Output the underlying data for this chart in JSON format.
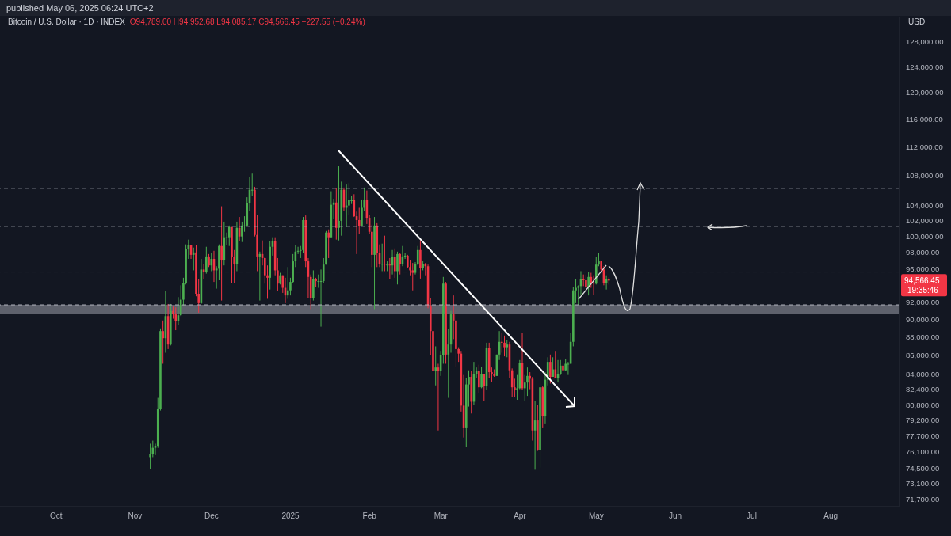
{
  "chart_data": {
    "type": "candlestick",
    "title": "Bitcoin / U.S. Dollar · 1D · INDEX",
    "subtitle": "O94,789.00 H94,952.68 L94,085.17 C94,566.45 −227.55 (−0.24%)",
    "ylabel": "USD",
    "annotations": [
      "published May 06, 2025 06:24 UTC+2",
      "94,566.45",
      "19:35:46"
    ],
    "log": "y",
    "xlim": [
      "2024-09-09",
      "2025-08-28"
    ],
    "xticks": [
      {
        "value": "2024-10-01",
        "label": "Oct"
      },
      {
        "value": "2024-11-01",
        "label": "Nov"
      },
      {
        "value": "2024-12-01",
        "label": "Dec"
      },
      {
        "value": "2025-01-01",
        "label": "2025"
      },
      {
        "value": "2025-02-01",
        "label": "Feb"
      },
      {
        "value": "2025-03-01",
        "label": "Mar"
      },
      {
        "value": "2025-04-01",
        "label": "Apr"
      },
      {
        "value": "2025-05-01",
        "label": "May"
      },
      {
        "value": "2025-06-01",
        "label": "Jun"
      },
      {
        "value": "2025-07-01",
        "label": "Jul"
      },
      {
        "value": "2025-08-01",
        "label": "Aug"
      }
    ],
    "ylim": [
      71000,
      132000
    ],
    "yticks": [
      {
        "value": 71700,
        "label": "71,700.00"
      },
      {
        "value": 73100,
        "label": "73,100.00"
      },
      {
        "value": 74500,
        "label": "74,500.00"
      },
      {
        "value": 76100,
        "label": "76,100.00"
      },
      {
        "value": 77700,
        "label": "77,700.00"
      },
      {
        "value": 79200,
        "label": "79,200.00"
      },
      {
        "value": 80800,
        "label": "80,800.00"
      },
      {
        "value": 82400,
        "label": "82,400.00"
      },
      {
        "value": 84000,
        "label": "84,000.00"
      },
      {
        "value": 86000,
        "label": "86,000.00"
      },
      {
        "value": 88000,
        "label": "88,000.00"
      },
      {
        "value": 90000,
        "label": "90,000.00"
      },
      {
        "value": 92000,
        "label": "92,000.00"
      },
      {
        "value": 96000,
        "label": "96,000.00"
      },
      {
        "value": 98000,
        "label": "98,000.00"
      },
      {
        "value": 100000,
        "label": "100,000.00"
      },
      {
        "value": 102000,
        "label": "102,000.00"
      },
      {
        "value": 104000,
        "label": "104,000.00"
      },
      {
        "value": 108000,
        "label": "108,000.00"
      },
      {
        "value": 112000,
        "label": "112,000.00"
      },
      {
        "value": 116000,
        "label": "116,000.00"
      },
      {
        "value": 120000,
        "label": "120,000.00"
      },
      {
        "value": 124000,
        "label": "124,000.00"
      },
      {
        "value": 128000,
        "label": "128,000.00"
      }
    ],
    "ref_lines": [
      {
        "axis": "y",
        "value": 106300,
        "color": "#b2b5be",
        "line_style": "dashed"
      },
      {
        "axis": "y",
        "value": 101300,
        "color": "#b2b5be",
        "line_style": "dashed"
      },
      {
        "axis": "y",
        "value": 95600,
        "color": "#b2b5be",
        "line_style": "dashed"
      },
      {
        "axis": "y",
        "value": 91700,
        "color": "#b2b5be",
        "line_style": "dashed"
      }
    ],
    "bands": [
      {
        "axis": "y",
        "from": 90600,
        "to": 91700,
        "color": "#787b86"
      }
    ],
    "x": [
      "2024-11-07",
      "2024-11-08",
      "2024-11-09",
      "2024-11-10",
      "2024-11-11",
      "2024-11-12",
      "2024-11-13",
      "2024-11-14",
      "2024-11-15",
      "2024-11-16",
      "2024-11-17",
      "2024-11-18",
      "2024-11-19",
      "2024-11-20",
      "2024-11-21",
      "2024-11-22",
      "2024-11-23",
      "2024-11-24",
      "2024-11-25",
      "2024-11-26",
      "2024-11-27",
      "2024-11-28",
      "2024-11-29",
      "2024-11-30",
      "2024-12-01",
      "2024-12-02",
      "2024-12-03",
      "2024-12-04",
      "2024-12-05",
      "2024-12-06",
      "2024-12-07",
      "2024-12-08",
      "2024-12-09",
      "2024-12-10",
      "2024-12-11",
      "2024-12-12",
      "2024-12-13",
      "2024-12-14",
      "2024-12-15",
      "2024-12-16",
      "2024-12-17",
      "2024-12-18",
      "2024-12-19",
      "2024-12-20",
      "2024-12-21",
      "2024-12-22",
      "2024-12-23",
      "2024-12-24",
      "2024-12-25",
      "2024-12-26",
      "2024-12-27",
      "2024-12-28",
      "2024-12-29",
      "2024-12-30",
      "2024-12-31",
      "2025-01-01",
      "2025-01-02",
      "2025-01-03",
      "2025-01-04",
      "2025-01-05",
      "2025-01-06",
      "2025-01-07",
      "2025-01-08",
      "2025-01-09",
      "2025-01-10",
      "2025-01-11",
      "2025-01-12",
      "2025-01-13",
      "2025-01-14",
      "2025-01-15",
      "2025-01-16",
      "2025-01-17",
      "2025-01-18",
      "2025-01-19",
      "2025-01-20",
      "2025-01-21",
      "2025-01-22",
      "2025-01-23",
      "2025-01-24",
      "2025-01-25",
      "2025-01-26",
      "2025-01-27",
      "2025-01-28",
      "2025-01-29",
      "2025-01-30",
      "2025-01-31",
      "2025-02-01",
      "2025-02-02",
      "2025-02-03",
      "2025-02-04",
      "2025-02-05",
      "2025-02-06",
      "2025-02-07",
      "2025-02-08",
      "2025-02-09",
      "2025-02-10",
      "2025-02-11",
      "2025-02-12",
      "2025-02-13",
      "2025-02-14",
      "2025-02-15",
      "2025-02-16",
      "2025-02-17",
      "2025-02-18",
      "2025-02-19",
      "2025-02-20",
      "2025-02-21",
      "2025-02-22",
      "2025-02-23",
      "2025-02-24",
      "2025-02-25",
      "2025-02-26",
      "2025-02-27",
      "2025-02-28",
      "2025-03-01",
      "2025-03-02",
      "2025-03-03",
      "2025-03-04",
      "2025-03-05",
      "2025-03-06",
      "2025-03-07",
      "2025-03-08",
      "2025-03-09",
      "2025-03-10",
      "2025-03-11",
      "2025-03-12",
      "2025-03-13",
      "2025-03-14",
      "2025-03-15",
      "2025-03-16",
      "2025-03-17",
      "2025-03-18",
      "2025-03-19",
      "2025-03-20",
      "2025-03-21",
      "2025-03-22",
      "2025-03-23",
      "2025-03-24",
      "2025-03-25",
      "2025-03-26",
      "2025-03-27",
      "2025-03-28",
      "2025-03-29",
      "2025-03-30",
      "2025-03-31",
      "2025-04-01",
      "2025-04-02",
      "2025-04-03",
      "2025-04-04",
      "2025-04-05",
      "2025-04-06",
      "2025-04-07",
      "2025-04-08",
      "2025-04-09",
      "2025-04-10",
      "2025-04-11",
      "2025-04-12",
      "2025-04-13",
      "2025-04-14",
      "2025-04-15",
      "2025-04-16",
      "2025-04-17",
      "2025-04-18",
      "2025-04-19",
      "2025-04-20",
      "2025-04-21",
      "2025-04-22",
      "2025-04-23",
      "2025-04-24",
      "2025-04-25",
      "2025-04-26",
      "2025-04-27",
      "2025-04-28",
      "2025-04-29",
      "2025-04-30",
      "2025-05-01",
      "2025-05-02",
      "2025-05-03",
      "2025-05-04",
      "2025-05-05",
      "2025-05-06"
    ],
    "ohlc": [
      [
        75600,
        76900,
        74500,
        75900
      ],
      [
        75900,
        77200,
        75600,
        76500
      ],
      [
        76500,
        76900,
        75800,
        76700
      ],
      [
        76700,
        81500,
        76500,
        80400
      ],
      [
        80400,
        89000,
        80200,
        88700
      ],
      [
        88700,
        89900,
        85100,
        87900
      ],
      [
        87900,
        93300,
        86300,
        90400
      ],
      [
        90400,
        91800,
        86700,
        87200
      ],
      [
        87200,
        91800,
        87100,
        91000
      ],
      [
        91000,
        91500,
        90100,
        90600
      ],
      [
        90600,
        91400,
        88800,
        89800
      ],
      [
        89800,
        92600,
        89400,
        90500
      ],
      [
        90500,
        94000,
        90400,
        92300
      ],
      [
        92300,
        94900,
        91600,
        94300
      ],
      [
        94300,
        99000,
        94100,
        98400
      ],
      [
        98400,
        99600,
        97200,
        98900
      ],
      [
        98900,
        98900,
        97200,
        97700
      ],
      [
        97700,
        98600,
        95800,
        98000
      ],
      [
        98000,
        98900,
        92700,
        93000
      ],
      [
        93000,
        94700,
        90800,
        91900
      ],
      [
        91900,
        97200,
        91800,
        95900
      ],
      [
        95900,
        96600,
        94700,
        95600
      ],
      [
        95600,
        98700,
        95400,
        97500
      ],
      [
        97500,
        97800,
        96200,
        96400
      ],
      [
        96400,
        97900,
        95700,
        97200
      ],
      [
        97200,
        98200,
        94400,
        95800
      ],
      [
        95800,
        96300,
        93600,
        96000
      ],
      [
        96000,
        99000,
        94600,
        98800
      ],
      [
        98800,
        103900,
        92200,
        97000
      ],
      [
        97000,
        101900,
        96400,
        99900
      ],
      [
        99900,
        100500,
        98900,
        99900
      ],
      [
        99900,
        101400,
        98800,
        101200
      ],
      [
        101200,
        101200,
        94300,
        97400
      ],
      [
        97400,
        98300,
        94300,
        96600
      ],
      [
        96600,
        101900,
        95700,
        101100
      ],
      [
        101100,
        102500,
        99400,
        100000
      ],
      [
        100000,
        101900,
        99300,
        101400
      ],
      [
        101400,
        102600,
        100600,
        101400
      ],
      [
        101400,
        105100,
        101300,
        104300
      ],
      [
        104300,
        107800,
        103300,
        106100
      ],
      [
        106100,
        108300,
        105300,
        106100
      ],
      [
        106100,
        106500,
        100000,
        100200
      ],
      [
        100200,
        102800,
        95700,
        97500
      ],
      [
        97500,
        98100,
        92200,
        97800
      ],
      [
        97800,
        99500,
        96400,
        97300
      ],
      [
        97300,
        97400,
        94200,
        95200
      ],
      [
        95200,
        96400,
        92400,
        94900
      ],
      [
        94900,
        99400,
        93500,
        98700
      ],
      [
        98700,
        99900,
        97600,
        99400
      ],
      [
        99400,
        99900,
        95200,
        95800
      ],
      [
        95800,
        97300,
        93300,
        94200
      ],
      [
        94200,
        95500,
        94100,
        95200
      ],
      [
        95200,
        95200,
        93100,
        93700
      ],
      [
        93700,
        94900,
        91900,
        92800
      ],
      [
        92800,
        96200,
        92400,
        93400
      ],
      [
        93400,
        94900,
        92800,
        94400
      ],
      [
        94400,
        97800,
        94300,
        96900
      ],
      [
        96900,
        98900,
        96200,
        98100
      ],
      [
        98100,
        98700,
        97800,
        98200
      ],
      [
        98200,
        98800,
        97300,
        98300
      ],
      [
        98300,
        102500,
        97900,
        102100
      ],
      [
        102100,
        102700,
        96200,
        96900
      ],
      [
        96900,
        97300,
        92500,
        95000
      ],
      [
        95000,
        95300,
        91200,
        92500
      ],
      [
        92500,
        95800,
        92200,
        94700
      ],
      [
        94700,
        94900,
        93800,
        94500
      ],
      [
        94500,
        95300,
        93700,
        94500
      ],
      [
        94500,
        95900,
        89200,
        94500
      ],
      [
        94500,
        97300,
        94300,
        96500
      ],
      [
        96500,
        100700,
        96500,
        100500
      ],
      [
        100500,
        100900,
        97300,
        99900
      ],
      [
        99900,
        105900,
        99900,
        104100
      ],
      [
        104100,
        104900,
        102300,
        104400
      ],
      [
        104400,
        106300,
        99600,
        101100
      ],
      [
        101100,
        109300,
        99500,
        102000
      ],
      [
        102000,
        107200,
        100100,
        106100
      ],
      [
        106100,
        106400,
        103300,
        103700
      ],
      [
        103700,
        106800,
        101200,
        104000
      ],
      [
        104000,
        107000,
        102800,
        104700
      ],
      [
        104700,
        105300,
        104200,
        104700
      ],
      [
        104700,
        105500,
        102500,
        102600
      ],
      [
        102600,
        103200,
        97800,
        102100
      ],
      [
        102100,
        103700,
        100300,
        101300
      ],
      [
        101300,
        104800,
        101300,
        103700
      ],
      [
        103700,
        106400,
        103300,
        104700
      ],
      [
        104700,
        106000,
        101600,
        102400
      ],
      [
        102400,
        102800,
        100300,
        100600
      ],
      [
        100600,
        101500,
        96200,
        97700
      ],
      [
        97700,
        102500,
        91200,
        101400
      ],
      [
        101400,
        101700,
        96200,
        97900
      ],
      [
        97900,
        99000,
        96200,
        96600
      ],
      [
        96600,
        99100,
        95700,
        96600
      ],
      [
        96600,
        100100,
        95700,
        96500
      ],
      [
        96500,
        96900,
        95700,
        96500
      ],
      [
        96500,
        97300,
        94700,
        96400
      ],
      [
        96400,
        98300,
        95300,
        97400
      ],
      [
        97400,
        98500,
        94900,
        95700
      ],
      [
        95700,
        98100,
        94100,
        97800
      ],
      [
        97800,
        97900,
        95300,
        96600
      ],
      [
        96600,
        98800,
        96300,
        97500
      ],
      [
        97500,
        97900,
        97200,
        97600
      ],
      [
        97600,
        97700,
        96100,
        96200
      ],
      [
        96200,
        97000,
        95200,
        95800
      ],
      [
        95800,
        96700,
        93400,
        95500
      ],
      [
        95500,
        96800,
        95300,
        96600
      ],
      [
        96600,
        98800,
        96400,
        98300
      ],
      [
        98300,
        99500,
        94800,
        96100
      ],
      [
        96100,
        96900,
        95800,
        96600
      ],
      [
        96600,
        96700,
        95200,
        96300
      ],
      [
        96300,
        96500,
        91300,
        91500
      ],
      [
        91500,
        92500,
        86000,
        88700
      ],
      [
        88700,
        89300,
        82300,
        84300
      ],
      [
        84300,
        87000,
        82800,
        84700
      ],
      [
        84700,
        85100,
        78200,
        84300
      ],
      [
        84300,
        86500,
        83800,
        86000
      ],
      [
        86000,
        95000,
        85100,
        94200
      ],
      [
        94200,
        94400,
        85100,
        86100
      ],
      [
        86100,
        88900,
        81500,
        87200
      ],
      [
        87200,
        91000,
        86300,
        90600
      ],
      [
        90600,
        92800,
        87800,
        89900
      ],
      [
        89900,
        91200,
        84700,
        86700
      ],
      [
        86700,
        86900,
        85300,
        86200
      ],
      [
        86200,
        86500,
        80100,
        80700
      ],
      [
        80700,
        83900,
        77500,
        78500
      ],
      [
        78500,
        83600,
        76600,
        82900
      ],
      [
        82900,
        84400,
        80600,
        83700
      ],
      [
        83700,
        84300,
        79900,
        81100
      ],
      [
        81100,
        85300,
        80800,
        84000
      ],
      [
        84000,
        84700,
        83600,
        84300
      ],
      [
        84300,
        85000,
        82000,
        82600
      ],
      [
        82600,
        84800,
        82500,
        84000
      ],
      [
        84000,
        84000,
        81200,
        82700
      ],
      [
        82700,
        87400,
        82300,
        86800
      ],
      [
        86800,
        87400,
        83600,
        84200
      ],
      [
        84200,
        84700,
        83200,
        84000
      ],
      [
        84000,
        84500,
        83700,
        83800
      ],
      [
        83800,
        86100,
        83800,
        86100
      ],
      [
        86100,
        88700,
        85500,
        87500
      ],
      [
        87500,
        88500,
        86300,
        87400
      ],
      [
        87400,
        88200,
        85900,
        86900
      ],
      [
        86900,
        87700,
        85800,
        87200
      ],
      [
        87200,
        87500,
        83600,
        84400
      ],
      [
        84400,
        84600,
        81600,
        82600
      ],
      [
        82600,
        83500,
        81600,
        82300
      ],
      [
        82300,
        83900,
        81300,
        82500
      ],
      [
        82500,
        85500,
        82400,
        85200
      ],
      [
        85200,
        88500,
        82300,
        82500
      ],
      [
        82500,
        83900,
        81200,
        83100
      ],
      [
        83100,
        84700,
        81700,
        83800
      ],
      [
        83800,
        84200,
        82400,
        83500
      ],
      [
        83500,
        83700,
        77200,
        78200
      ],
      [
        78200,
        81200,
        74400,
        79200
      ],
      [
        79200,
        80800,
        76200,
        76300
      ],
      [
        76300,
        83500,
        74600,
        82600
      ],
      [
        82600,
        82700,
        78500,
        79600
      ],
      [
        79600,
        84200,
        78900,
        83400
      ],
      [
        83400,
        85800,
        82800,
        85300
      ],
      [
        85300,
        86100,
        83000,
        83700
      ],
      [
        83700,
        85800,
        83700,
        84500
      ],
      [
        84500,
        86500,
        83600,
        83600
      ],
      [
        83600,
        85500,
        83100,
        84000
      ],
      [
        84000,
        85500,
        83900,
        84900
      ],
      [
        84900,
        85100,
        84300,
        84400
      ],
      [
        84400,
        85600,
        84300,
        85100
      ],
      [
        85100,
        85300,
        83900,
        85100
      ],
      [
        85100,
        88500,
        85100,
        87500
      ],
      [
        87500,
        93800,
        87000,
        93400
      ],
      [
        93400,
        94700,
        91900,
        93700
      ],
      [
        93700,
        94000,
        91700,
        93900
      ],
      [
        93900,
        95700,
        92900,
        94700
      ],
      [
        94700,
        95300,
        93900,
        94600
      ],
      [
        94600,
        95300,
        93600,
        93800
      ],
      [
        93800,
        95600,
        92800,
        95000
      ],
      [
        95000,
        95500,
        93700,
        94300
      ],
      [
        94300,
        95200,
        92900,
        94200
      ],
      [
        94200,
        97400,
        94100,
        96500
      ],
      [
        96500,
        97900,
        96300,
        96900
      ],
      [
        96900,
        96900,
        95700,
        95900
      ],
      [
        95900,
        96300,
        94000,
        94300
      ],
      [
        94300,
        95200,
        93500,
        94789
      ],
      [
        94789,
        94952.68,
        94085.17,
        94566.45
      ]
    ]
  }
}
